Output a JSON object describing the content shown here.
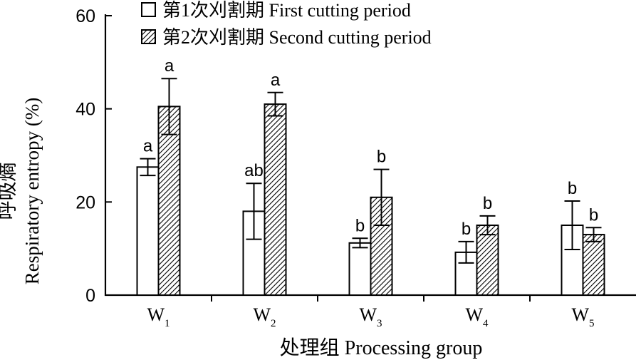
{
  "chart_data": {
    "type": "bar",
    "categories": [
      {
        "base": "W",
        "sub": "1"
      },
      {
        "base": "W",
        "sub": "2"
      },
      {
        "base": "W",
        "sub": "3"
      },
      {
        "base": "W",
        "sub": "4"
      },
      {
        "base": "W",
        "sub": "5"
      }
    ],
    "series": [
      {
        "name": "第1次刈割期 First cutting period",
        "pattern": "none",
        "values": [
          27.5,
          18.0,
          11.2,
          9.2,
          15.0
        ],
        "errors": [
          1.8,
          6.0,
          1.0,
          2.3,
          5.2
        ],
        "significance": [
          "a",
          "ab",
          "b",
          "b",
          "b"
        ]
      },
      {
        "name": "第2次刈割期 Second cutting period",
        "pattern": "diagonal-hatch",
        "values": [
          40.5,
          41.0,
          21.0,
          15.0,
          13.0
        ],
        "errors": [
          6.0,
          2.5,
          6.0,
          2.0,
          1.5
        ],
        "significance": [
          "a",
          "a",
          "b",
          "b",
          "b"
        ]
      }
    ],
    "xlabel": "处理组 Processing group",
    "ylabel_cn": "呼吸熵",
    "ylabel_en": "Respiratory entropy (%)",
    "ylim": [
      0,
      60
    ],
    "yticks": [
      "0",
      "20",
      "40",
      "60"
    ],
    "grid": false,
    "legend_position": "top-left"
  },
  "colors": {
    "axis": "#000000",
    "bar_fill": "#ffffff",
    "hatch": "#000000"
  }
}
